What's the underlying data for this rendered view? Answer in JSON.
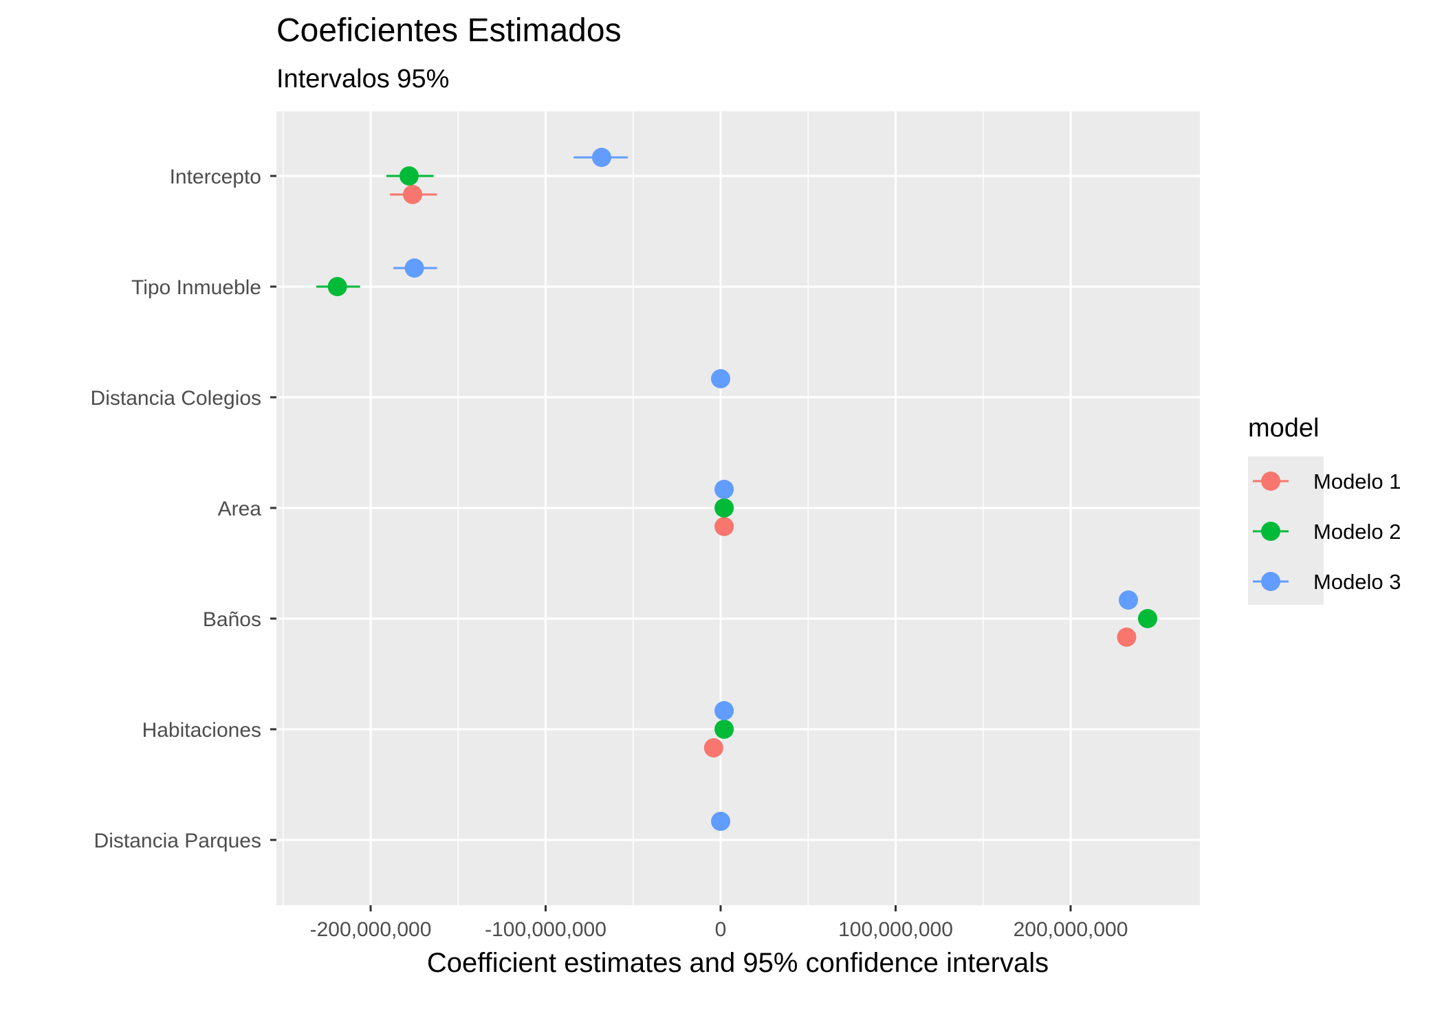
{
  "chart_data": {
    "type": "scatter",
    "title": "Coeficientes Estimados",
    "subtitle": "Intervalos 95%",
    "xlabel": "Coefficient estimates and 95% confidence intervals",
    "ylabel": "",
    "xlim": [
      -250000000,
      275000000
    ],
    "x_ticks": [
      -200000000,
      -100000000,
      0,
      100000000,
      200000000
    ],
    "x_tick_labels": [
      "-200,000,000",
      "-100,000,000",
      "0",
      "100,000,000",
      "200,000,000"
    ],
    "categories": [
      "Intercepto",
      "Tipo Inmueble",
      "Distancia Colegios",
      "Area",
      "Baños",
      "Habitaciones",
      "Distancia Parques"
    ],
    "grid": true,
    "legend_title": "model",
    "legend_position": "right",
    "series": [
      {
        "name": "Modelo 1",
        "color": "#F8766D",
        "points": [
          {
            "category": "Intercepto",
            "estimate": -176000000,
            "low": -189000000,
            "high": -162000000
          },
          {
            "category": "Area",
            "estimate": 2000000,
            "low": 1500000,
            "high": 2500000
          },
          {
            "category": "Baños",
            "estimate": 232000000,
            "low": 231000000,
            "high": 233000000
          },
          {
            "category": "Habitaciones",
            "estimate": -4000000,
            "low": -5000000,
            "high": -3000000
          }
        ]
      },
      {
        "name": "Modelo 2",
        "color": "#00BA38",
        "points": [
          {
            "category": "Intercepto",
            "estimate": -178000000,
            "low": -191000000,
            "high": -164000000
          },
          {
            "category": "Tipo Inmueble",
            "estimate": -219000000,
            "low": -231000000,
            "high": -206000000
          },
          {
            "category": "Area",
            "estimate": 2000000,
            "low": 1500000,
            "high": 2500000
          },
          {
            "category": "Baños",
            "estimate": 244000000,
            "low": 243000000,
            "high": 245000000
          },
          {
            "category": "Habitaciones",
            "estimate": 2000000,
            "low": 1000000,
            "high": 3000000
          }
        ]
      },
      {
        "name": "Modelo 3",
        "color": "#619CFF",
        "points": [
          {
            "category": "Intercepto",
            "estimate": -68000000,
            "low": -84000000,
            "high": -53000000
          },
          {
            "category": "Tipo Inmueble",
            "estimate": -175000000,
            "low": -187000000,
            "high": -162000000
          },
          {
            "category": "Distancia Colegios",
            "estimate": 0,
            "low": -500000,
            "high": 500000
          },
          {
            "category": "Area",
            "estimate": 2000000,
            "low": 1500000,
            "high": 2500000
          },
          {
            "category": "Baños",
            "estimate": 233000000,
            "low": 232000000,
            "high": 234000000
          },
          {
            "category": "Habitaciones",
            "estimate": 2000000,
            "low": 1000000,
            "high": 3000000
          },
          {
            "category": "Distancia Parques",
            "estimate": 0,
            "low": -500000,
            "high": 500000
          }
        ]
      }
    ]
  }
}
